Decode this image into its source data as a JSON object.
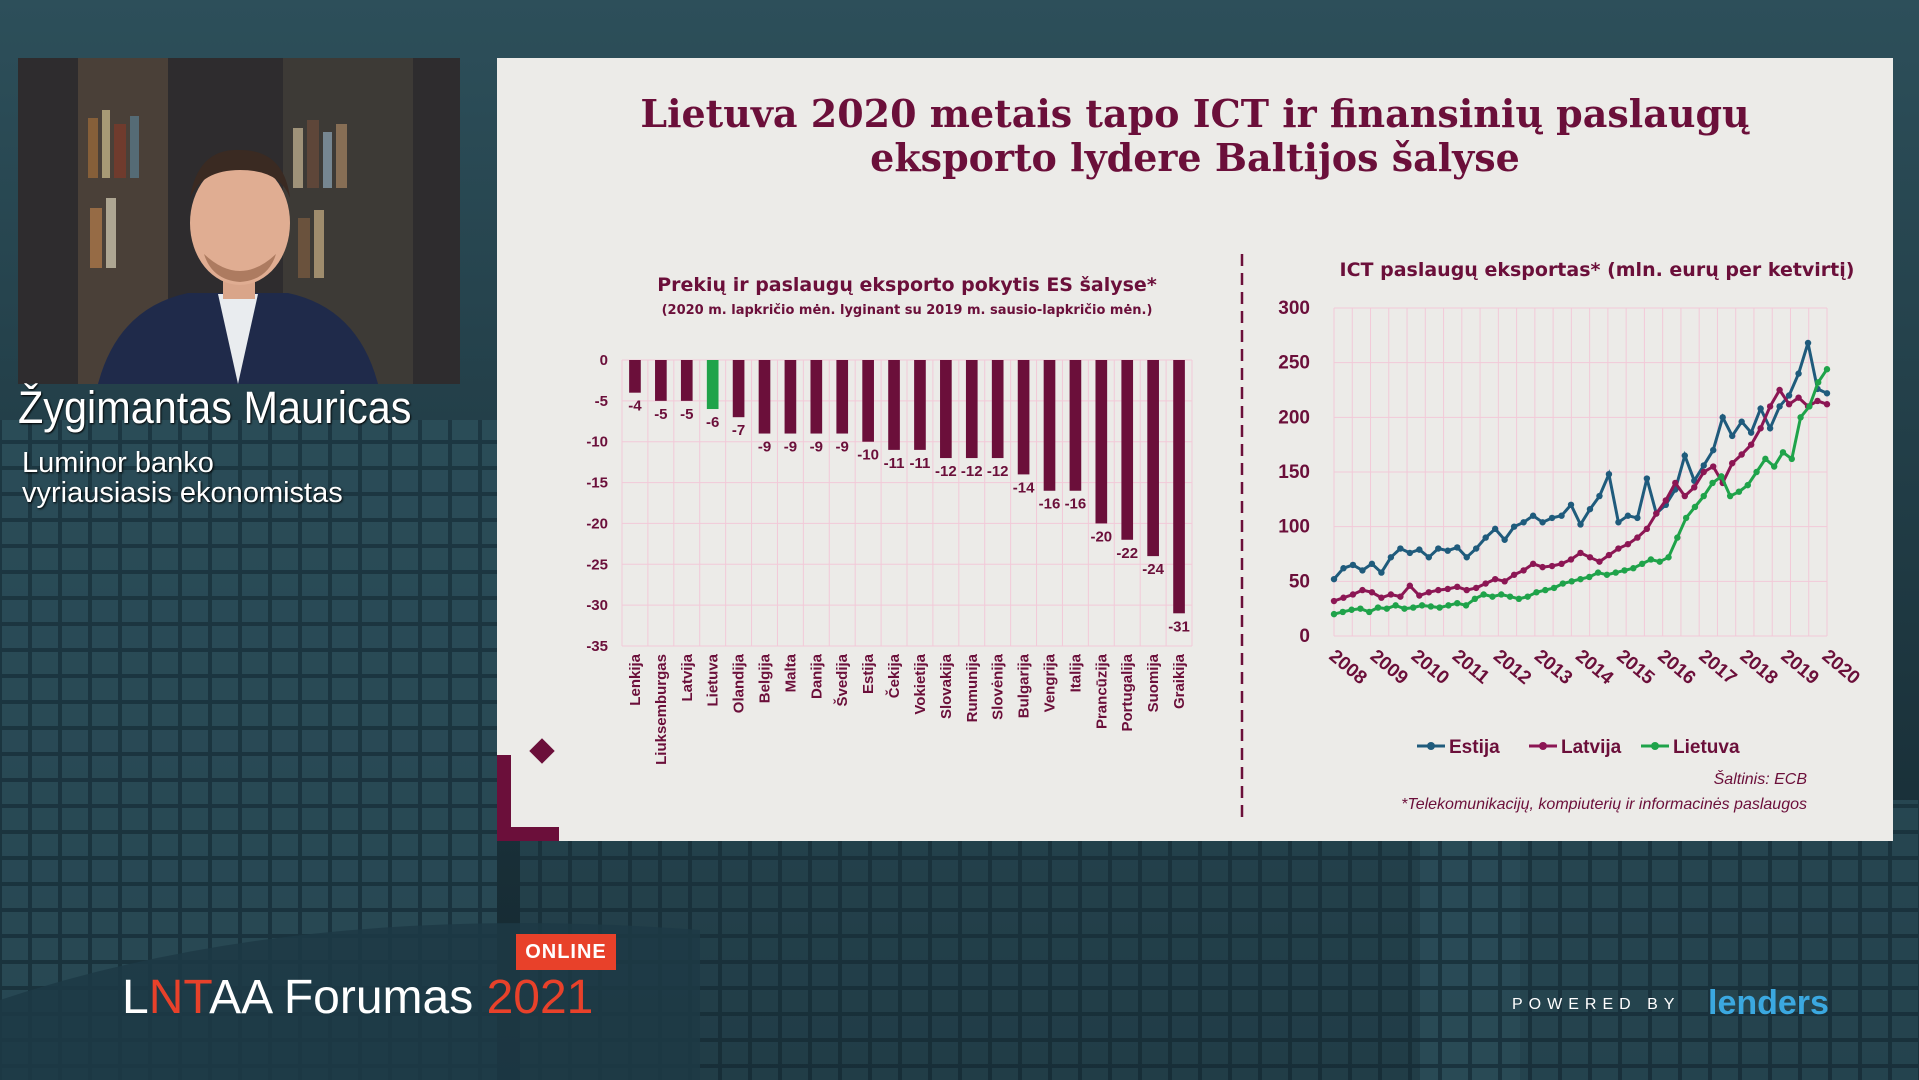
{
  "speaker": {
    "name": "Žygimantas Mauricas",
    "role_line1": "Luminor banko",
    "role_line2": "vyriausiasis ekonomistas"
  },
  "event": {
    "badge": "ONLINE",
    "name_l": "L",
    "name_nt": "NT",
    "name_rest": "AA Forumas ",
    "year": "2021"
  },
  "sponsor": {
    "powered_by": "POWERED BY",
    "logo_text": "lenders"
  },
  "slide": {
    "title_line1": "Lietuva 2020 metais tapo ICT ir finansinių paslaugų",
    "title_line2": "eksporto lydere Baltijos šalyse"
  },
  "colors": {
    "bar": "#6b0f3a",
    "bar_highlight": "#1fa34a",
    "estija": "#1f5b7c",
    "latvija": "#8c1654",
    "lietuva": "#1fa34a",
    "title": "#6b0f3a",
    "grid": "#f2c9d8"
  },
  "chart_data": [
    {
      "type": "bar",
      "title": "Prekių ir paslaugų eksporto pokytis ES šalyse*",
      "subtitle": "(2020 m. lapkričio mėn. lyginant su 2019 m. sausio-lapkričio mėn.)",
      "categories": [
        "Lenkija",
        "Liuksemburgas",
        "Latvija",
        "Lietuva",
        "Olandija",
        "Belgija",
        "Malta",
        "Danija",
        "Švedija",
        "Estija",
        "Čekija",
        "Vokietija",
        "Slovakija",
        "Rumunija",
        "Slovėnija",
        "Bulgarija",
        "Vengrija",
        "Italija",
        "Prancūzija",
        "Portugalija",
        "Suomija",
        "Graikija"
      ],
      "values": [
        -4,
        -5,
        -5,
        -6,
        -7,
        -9,
        -9,
        -9,
        -9,
        -10,
        -11,
        -11,
        -12,
        -12,
        -12,
        -14,
        -16,
        -16,
        -20,
        -22,
        -24,
        -31
      ],
      "highlight": "Lietuva",
      "ylim": [
        -35,
        0
      ],
      "yticks": [
        0,
        -5,
        -10,
        -15,
        -20,
        -25,
        -30,
        -35
      ],
      "grid": true
    },
    {
      "type": "line",
      "title": "ICT paslaugų eksportas* (mln. eurų per ketvirtį)",
      "x_ticks": [
        "2008",
        "2009",
        "2010",
        "2011",
        "2012",
        "2013",
        "2014",
        "2015",
        "2016",
        "2017",
        "2018",
        "2019",
        "2020"
      ],
      "ylim": [
        0,
        300
      ],
      "yticks": [
        0,
        50,
        100,
        150,
        200,
        250,
        300
      ],
      "legend": "bottom",
      "grid": true,
      "series": [
        {
          "name": "Estija",
          "values": [
            52,
            62,
            65,
            60,
            66,
            58,
            72,
            80,
            76,
            79,
            72,
            80,
            78,
            81,
            72,
            80,
            90,
            98,
            88,
            100,
            104,
            110,
            104,
            108,
            110,
            120,
            102,
            116,
            128,
            148,
            104,
            110,
            108,
            144,
            112,
            120,
            134,
            165,
            142,
            156,
            170,
            200,
            183,
            196,
            186,
            208,
            190,
            210,
            220,
            240,
            268,
            226,
            222
          ]
        },
        {
          "name": "Latvija",
          "values": [
            32,
            35,
            38,
            42,
            40,
            35,
            38,
            36,
            46,
            37,
            40,
            42,
            43,
            45,
            42,
            44,
            48,
            52,
            50,
            56,
            60,
            66,
            63,
            64,
            66,
            70,
            76,
            72,
            68,
            74,
            80,
            84,
            90,
            98,
            112,
            124,
            140,
            128,
            136,
            150,
            155,
            140,
            158,
            166,
            175,
            190,
            210,
            225,
            212,
            218,
            210,
            215,
            212
          ]
        },
        {
          "name": "Lietuva",
          "values": [
            20,
            22,
            24,
            25,
            22,
            26,
            25,
            28,
            25,
            26,
            28,
            27,
            26,
            28,
            30,
            28,
            34,
            38,
            36,
            38,
            36,
            34,
            36,
            40,
            42,
            44,
            48,
            50,
            52,
            54,
            58,
            56,
            58,
            60,
            62,
            66,
            70,
            68,
            72,
            90,
            108,
            118,
            128,
            140,
            146,
            128,
            132,
            138,
            150,
            162,
            155,
            168,
            162,
            200,
            210,
            232,
            244
          ]
        }
      ],
      "source": "Šaltinis: ECB",
      "footnote": "*Telekomunikacijų, kompiuterių ir informacinės paslaugos"
    }
  ]
}
